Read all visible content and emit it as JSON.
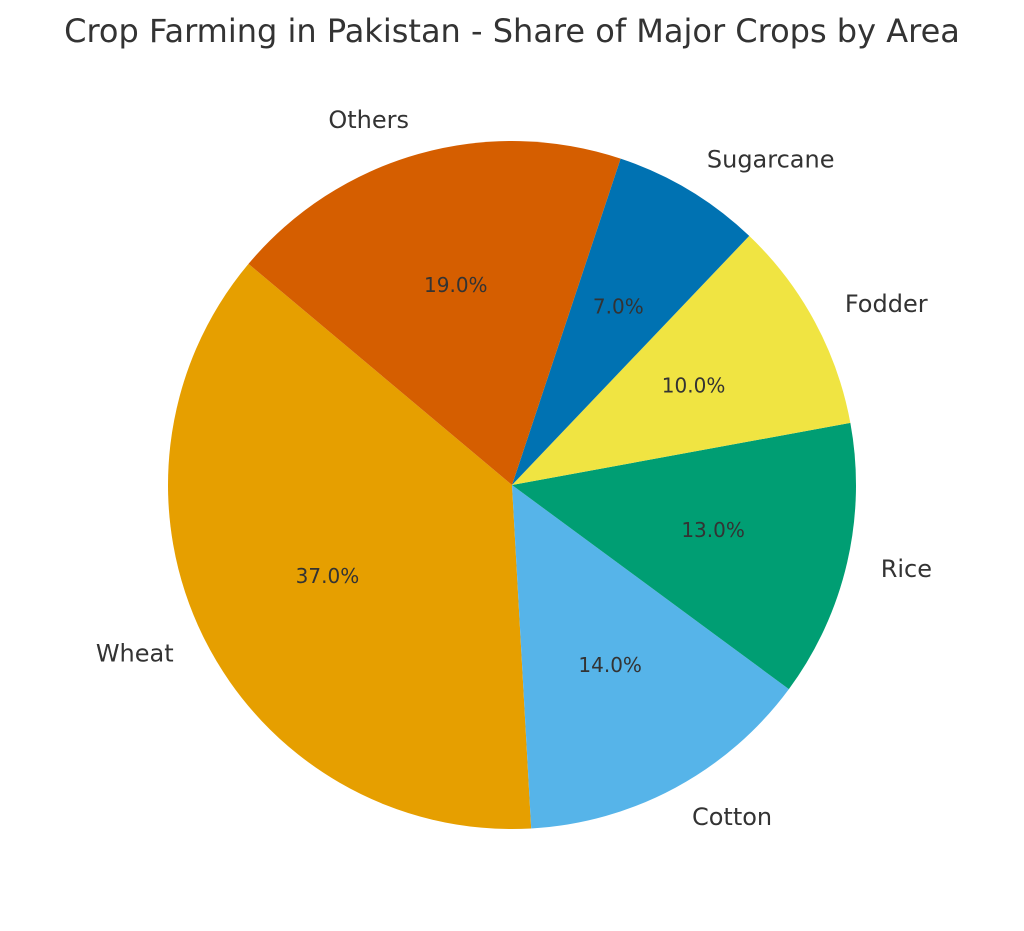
{
  "chart_data": {
    "type": "pie",
    "title": "Crop Farming in Pakistan - Share of Major Crops by Area",
    "slices": [
      {
        "label": "Wheat",
        "value": 37.0,
        "pct_text": "37.0%",
        "color": "#E69F00"
      },
      {
        "label": "Cotton",
        "value": 14.0,
        "pct_text": "14.0%",
        "color": "#56B4E9"
      },
      {
        "label": "Rice",
        "value": 13.0,
        "pct_text": "13.0%",
        "color": "#009E73"
      },
      {
        "label": "Fodder",
        "value": 10.0,
        "pct_text": "10.0%",
        "color": "#F0E442"
      },
      {
        "label": "Sugarcane",
        "value": 7.0,
        "pct_text": "7.0%",
        "color": "#0072B2"
      },
      {
        "label": "Others",
        "value": 19.0,
        "pct_text": "19.0%",
        "color": "#D55E00"
      }
    ],
    "start_angle_deg": 140,
    "direction": "counterclockwise",
    "legend": "none"
  }
}
